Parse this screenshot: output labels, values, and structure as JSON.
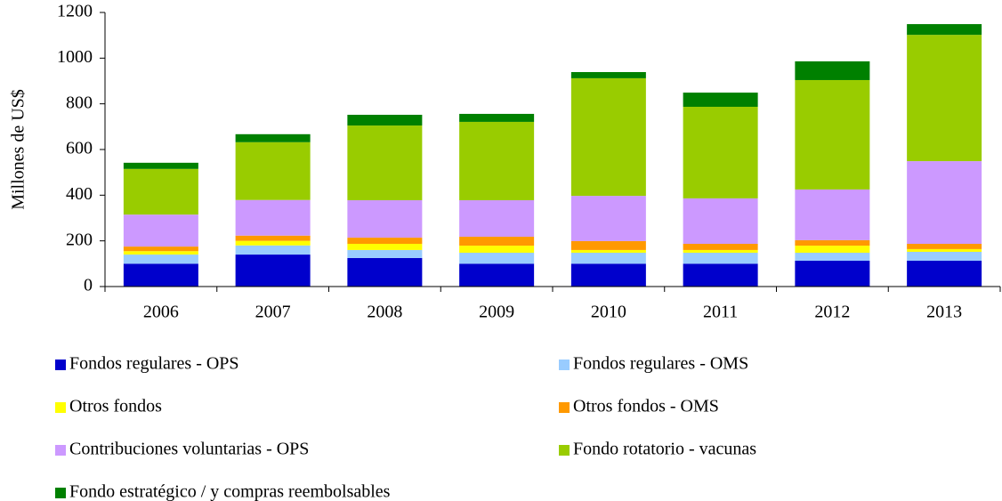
{
  "chart_data": {
    "type": "stacked_bar",
    "y_label": "Millones de US$",
    "categories": [
      "2006",
      "2007",
      "2008",
      "2009",
      "2010",
      "2011",
      "2012",
      "2013"
    ],
    "series": [
      {
        "name": "Fondos regulares - OPS",
        "color": "#0000cc",
        "values": [
          100,
          140,
          125,
          100,
          100,
          100,
          113,
          113
        ]
      },
      {
        "name": "Fondos regulares - OMS",
        "color": "#99ccff",
        "values": [
          40,
          40,
          35,
          48,
          48,
          48,
          35,
          39
        ]
      },
      {
        "name": "Otros fondos",
        "color": "#ffff00",
        "values": [
          15,
          20,
          27,
          31,
          12,
          12,
          31,
          12
        ]
      },
      {
        "name": "Otros fondos - OMS",
        "color": "#ff9900",
        "values": [
          20,
          23,
          27,
          39,
          39,
          27,
          24,
          23
        ]
      },
      {
        "name": "Contribuciones voluntarias - OPS",
        "color": "#cc99ff",
        "values": [
          140,
          156,
          164,
          160,
          198,
          199,
          222,
          362
        ]
      },
      {
        "name": "Fondo rotatorio - vacunas",
        "color": "#99cc00",
        "values": [
          200,
          253,
          327,
          343,
          515,
          401,
          479,
          553
        ]
      },
      {
        "name": "Fondo estratégico / y compras reembolsables",
        "color": "#008000",
        "values": [
          27,
          35,
          47,
          35,
          27,
          62,
          82,
          47
        ]
      }
    ],
    "ylim": [
      0,
      1200
    ],
    "yticks": [
      0,
      200,
      400,
      600,
      800,
      1000,
      1200
    ]
  }
}
